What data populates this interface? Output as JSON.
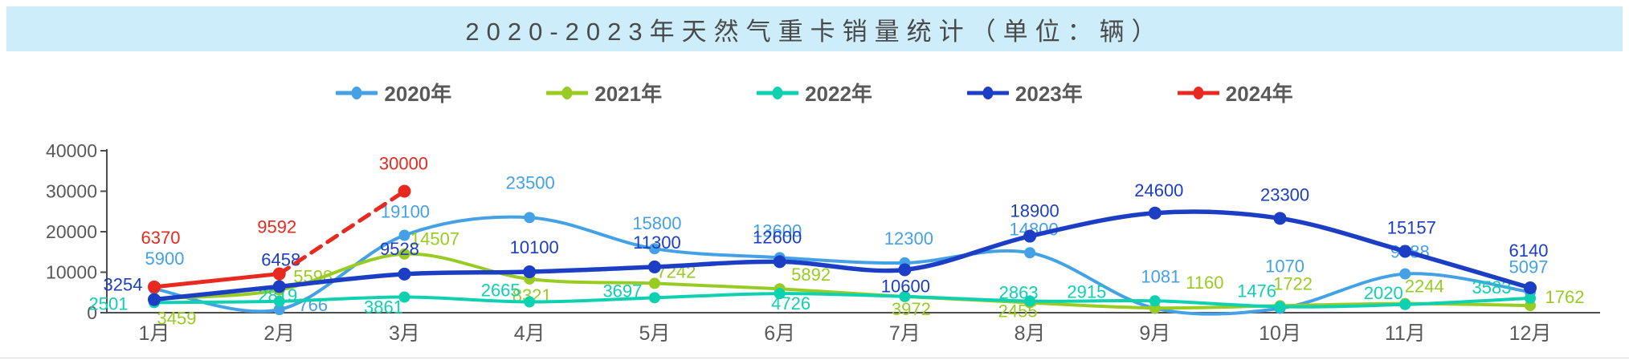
{
  "title": "2020-2023年天然气重卡销量统计（单位：辆）",
  "legend": {
    "items": [
      {
        "label": "2020年",
        "color": "#45A1E6"
      },
      {
        "label": "2021年",
        "color": "#99CC22"
      },
      {
        "label": "2022年",
        "color": "#0ED1B2"
      },
      {
        "label": "2023年",
        "color": "#1C3EC5"
      },
      {
        "label": "2024年",
        "color": "#E8291F"
      }
    ]
  },
  "chart_data": {
    "type": "line",
    "title": "2020-2023年天然气重卡销量统计（单位：辆）",
    "categories": [
      "1月",
      "2月",
      "3月",
      "4月",
      "5月",
      "6月",
      "7月",
      "8月",
      "9月",
      "10月",
      "11月",
      "12月"
    ],
    "xlabel": "",
    "ylabel": "",
    "y_ticks": [
      0,
      10000,
      20000,
      30000,
      40000
    ],
    "ylim": [
      0,
      40000
    ],
    "grid": false,
    "legend_position": "top",
    "axis": {
      "line_color": "#4D4D4D",
      "tick_label_color": "#595959"
    },
    "series": [
      {
        "name": "2020年",
        "color": "#45A1E6",
        "smooth": true,
        "width": 4,
        "dot_radius": 7,
        "values": [
          5900,
          766,
          19100,
          23500,
          15800,
          13600,
          12300,
          14800,
          1081,
          1070,
          9588,
          5097
        ],
        "label_offsets": [
          [
            13,
            -38
          ],
          [
            42,
            -6
          ],
          [
            1,
            -30
          ],
          [
            1,
            -44
          ],
          [
            3,
            -32
          ],
          [
            -3,
            -34
          ],
          [
            5,
            -31
          ],
          [
            5,
            -30
          ],
          [
            7,
            -40
          ],
          [
            6,
            -53
          ],
          [
            6,
            -28
          ],
          [
            -2,
            -32
          ]
        ]
      },
      {
        "name": "2021年",
        "color": "#99CC22",
        "smooth": true,
        "width": 4,
        "dot_radius": 7,
        "values": [
          3459,
          5598,
          14507,
          8321,
          7242,
          5892,
          3972,
          2455,
          1160,
          1722,
          2244,
          1762
        ],
        "label_offsets": [
          [
            28,
            24
          ],
          [
            42,
            -17
          ],
          [
            38,
            -19
          ],
          [
            3,
            20
          ],
          [
            27,
            -15
          ],
          [
            39,
            -18
          ],
          [
            8,
            15
          ],
          [
            -15,
            10
          ],
          [
            62,
            -32
          ],
          [
            16,
            -28
          ],
          [
            24,
            -22
          ],
          [
            43,
            -11
          ]
        ]
      },
      {
        "name": "2022年",
        "color": "#0ED1B2",
        "smooth": true,
        "width": 4,
        "dot_radius": 7,
        "values": [
          2501,
          2819,
          3861,
          2665,
          3697,
          4726,
          4000,
          2863,
          2915,
          1476,
          2020,
          3583
        ],
        "label_offsets": [
          [
            -57,
            1
          ],
          [
            -2,
            -8
          ],
          [
            -26,
            12
          ],
          [
            -36,
            -15
          ],
          [
            -40,
            -9
          ],
          [
            14,
            12
          ],
          null,
          [
            -14,
            -11
          ],
          [
            -85,
            -12
          ],
          [
            -29,
            -20
          ],
          [
            -27,
            -15
          ],
          [
            -48,
            -14
          ]
        ]
      },
      {
        "name": "2023年",
        "color": "#1C3EC5",
        "smooth": true,
        "width": 5.5,
        "dot_radius": 8,
        "values": [
          3254,
          6458,
          9528,
          10100,
          11300,
          12600,
          10600,
          18900,
          24600,
          23300,
          15157,
          6140
        ],
        "label_offsets": [
          [
            -39,
            -19
          ],
          [
            2,
            -34
          ],
          [
            -6,
            -32
          ],
          [
            6,
            -31
          ],
          [
            3,
            -31
          ],
          [
            -3,
            -31
          ],
          [
            1,
            20
          ],
          [
            6,
            -32
          ],
          [
            5,
            -29
          ],
          [
            6,
            -30
          ],
          [
            8,
            -30
          ],
          [
            -2,
            -47
          ]
        ]
      },
      {
        "name": "2024年",
        "color": "#E8291F",
        "smooth": false,
        "width": 5,
        "dot_radius": 8,
        "dashed_after_index": 1,
        "values": [
          6370,
          9592,
          30000,
          null,
          null,
          null,
          null,
          null,
          null,
          null,
          null,
          null
        ],
        "label_offsets": [
          [
            8,
            -62
          ],
          [
            -3,
            -59
          ],
          [
            -1,
            -35
          ],
          null,
          null,
          null,
          null,
          null,
          null,
          null,
          null,
          null
        ]
      }
    ]
  }
}
